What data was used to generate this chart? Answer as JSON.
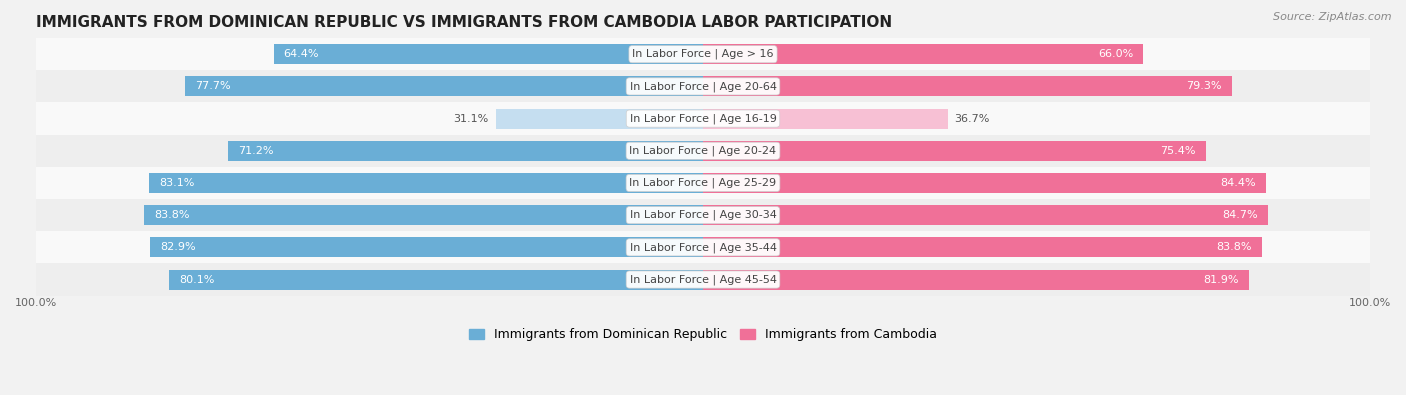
{
  "title": "IMMIGRANTS FROM DOMINICAN REPUBLIC VS IMMIGRANTS FROM CAMBODIA LABOR PARTICIPATION",
  "source": "Source: ZipAtlas.com",
  "categories": [
    "In Labor Force | Age > 16",
    "In Labor Force | Age 20-64",
    "In Labor Force | Age 16-19",
    "In Labor Force | Age 20-24",
    "In Labor Force | Age 25-29",
    "In Labor Force | Age 30-34",
    "In Labor Force | Age 35-44",
    "In Labor Force | Age 45-54"
  ],
  "left_values": [
    64.4,
    77.7,
    31.1,
    71.2,
    83.1,
    83.8,
    82.9,
    80.1
  ],
  "right_values": [
    66.0,
    79.3,
    36.7,
    75.4,
    84.4,
    84.7,
    83.8,
    81.9
  ],
  "left_color": "#6aaed6",
  "right_color": "#f07098",
  "left_light_color": "#c5def0",
  "right_light_color": "#f7c0d4",
  "left_label": "Immigrants from Dominican Republic",
  "right_label": "Immigrants from Cambodia",
  "bar_height": 0.62,
  "bg_color": "#f2f2f2",
  "row_colors": [
    "#f9f9f9",
    "#eeeeee"
  ],
  "title_fontsize": 11,
  "label_fontsize": 8,
  "value_fontsize": 8,
  "axis_label_fontsize": 8,
  "max_val": 100.0,
  "low_threshold": 50.0
}
